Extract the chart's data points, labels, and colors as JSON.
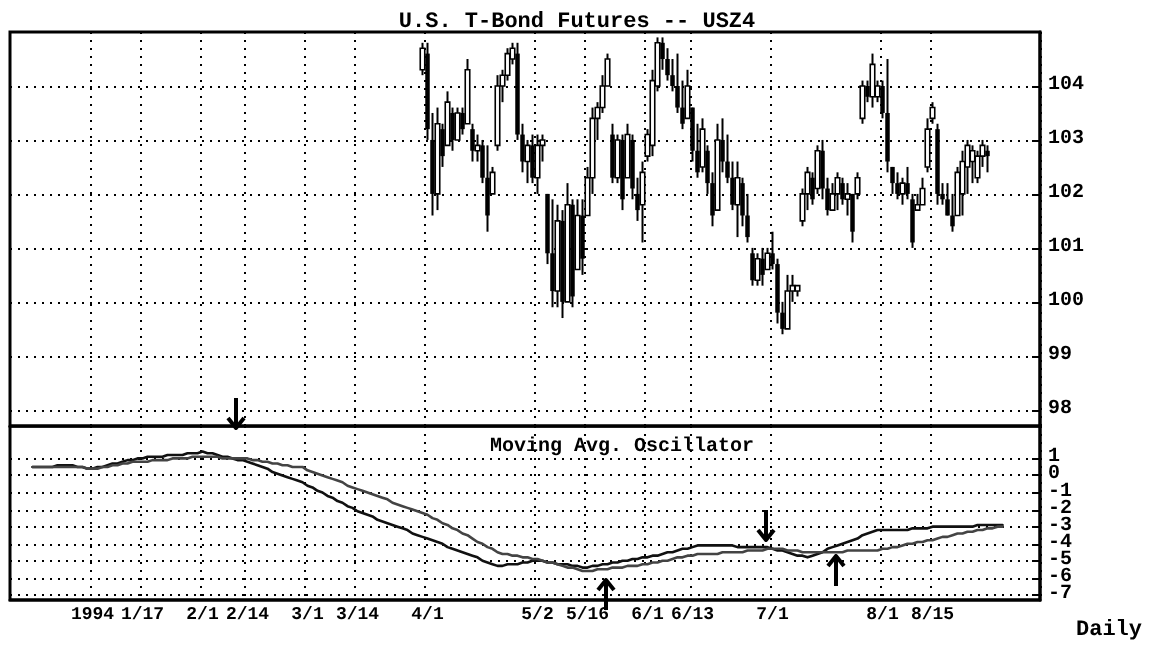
{
  "chart_data": [
    {
      "type": "candlestick",
      "title": "U.S. T-Bond Futures -- USZ4",
      "categories": [
        null,
        null,
        null,
        null,
        null,
        null,
        null,
        null,
        null,
        null,
        null,
        null,
        null,
        null,
        null,
        null,
        null,
        null,
        null,
        null,
        null,
        null,
        null,
        null,
        null,
        null,
        null,
        null,
        null,
        null,
        null,
        null,
        null,
        null,
        null,
        null,
        null,
        null,
        null,
        null,
        null,
        null,
        null,
        null,
        null,
        null,
        null,
        null,
        null,
        null,
        null,
        null,
        null,
        null,
        null,
        null,
        null,
        null,
        null,
        null,
        null,
        null,
        null,
        null,
        null,
        null,
        null,
        null,
        null,
        null,
        null,
        null,
        null,
        null,
        null,
        null,
        null,
        null,
        null,
        null,
        null,
        null,
        null,
        null,
        null,
        null,
        null,
        null,
        null,
        null,
        null,
        null,
        null,
        null,
        null,
        null,
        null,
        null,
        null,
        null,
        null,
        null,
        null,
        null,
        null,
        null,
        null,
        null,
        null,
        null,
        null,
        null,
        null,
        null,
        null,
        null,
        null,
        null,
        null,
        null,
        null,
        null,
        null,
        null,
        null,
        null,
        null,
        null,
        null,
        null,
        null,
        null,
        null,
        null,
        null,
        null,
        null,
        null,
        null,
        null,
        null,
        null,
        null,
        null,
        null,
        null,
        null,
        null,
        null,
        null,
        null,
        null,
        null,
        null,
        null,
        null,
        null,
        null,
        null,
        null,
        null,
        null,
        null,
        null,
        null,
        null,
        null,
        null,
        null,
        null,
        null,
        null,
        null,
        null,
        null,
        null,
        null,
        null,
        null,
        null,
        null,
        null,
        null,
        null,
        null,
        null,
        null,
        null,
        null,
        null,
        null,
        null,
        null,
        null,
        null,
        null,
        null,
        null,
        null,
        null,
        null,
        null,
        null,
        null,
        null,
        null
      ],
      "ohlc": [
        null,
        null,
        null,
        null,
        null,
        null,
        null,
        null,
        null,
        null,
        null,
        null,
        null,
        null,
        null,
        null,
        null,
        null,
        null,
        null,
        null,
        null,
        null,
        null,
        null,
        null,
        null,
        null,
        null,
        null,
        null,
        null,
        null,
        null,
        null,
        null,
        null,
        null,
        null,
        null,
        null,
        null,
        null,
        null,
        null,
        null,
        null,
        null,
        null,
        null,
        null,
        null,
        null,
        null,
        null,
        null,
        null,
        null,
        null,
        null,
        null,
        null,
        null,
        null,
        null,
        null,
        null,
        null,
        null,
        null,
        null,
        null,
        null,
        null,
        null,
        null,
        null,
        null,
        null,
        null,
        null,
        null,
        [
          104.3,
          104.8,
          104.2,
          104.7
        ],
        [
          104.6,
          104.8,
          103.0,
          103.2
        ],
        [
          103.0,
          103.5,
          101.6,
          102.0
        ],
        [
          102.0,
          103.6,
          101.7,
          103.3
        ],
        [
          103.2,
          103.3,
          102.5,
          102.7
        ],
        [
          102.9,
          103.9,
          102.9,
          103.7
        ],
        [
          103.5,
          103.6,
          102.8,
          103.0
        ],
        [
          103.0,
          103.6,
          103.0,
          103.5
        ],
        [
          103.5,
          103.6,
          103.1,
          103.2
        ],
        [
          103.3,
          104.5,
          103.3,
          104.3
        ],
        [
          103.2,
          103.3,
          102.6,
          102.8
        ],
        [
          102.8,
          103.1,
          102.6,
          102.9
        ],
        [
          102.9,
          103.0,
          102.2,
          102.3
        ],
        [
          102.3,
          102.9,
          101.3,
          101.6
        ],
        [
          102.0,
          102.5,
          102.0,
          102.4
        ],
        [
          102.9,
          104.2,
          102.8,
          104.0
        ],
        [
          104.0,
          104.3,
          103.7,
          104.2
        ],
        [
          104.2,
          104.7,
          104.1,
          104.6
        ],
        [
          104.5,
          104.8,
          104.4,
          104.7
        ],
        [
          104.6,
          104.8,
          103.0,
          103.1
        ],
        [
          103.1,
          103.3,
          102.4,
          102.6
        ],
        [
          102.6,
          103.0,
          102.2,
          102.9
        ],
        [
          102.9,
          103.1,
          102.2,
          102.3
        ],
        [
          102.3,
          103.1,
          102.0,
          102.9
        ],
        [
          102.9,
          103.1,
          102.6,
          103.0
        ],
        [
          102.0,
          102.0,
          100.7,
          100.9
        ],
        [
          100.9,
          101.9,
          99.9,
          100.2
        ],
        [
          100.2,
          101.8,
          99.9,
          101.5
        ],
        [
          101.5,
          101.7,
          99.7,
          100.0
        ],
        [
          100.0,
          102.2,
          100.0,
          101.8
        ],
        [
          101.8,
          101.9,
          99.9,
          100.1
        ],
        [
          100.6,
          101.9,
          100.6,
          101.6
        ],
        [
          101.6,
          101.9,
          100.5,
          100.8
        ],
        [
          101.6,
          102.5,
          101.6,
          102.3
        ],
        [
          102.3,
          103.6,
          102.0,
          103.4
        ],
        [
          103.4,
          103.7,
          103.0,
          103.6
        ],
        [
          103.6,
          104.2,
          103.5,
          104.0
        ],
        [
          104.0,
          104.6,
          104.0,
          104.5
        ],
        [
          103.1,
          103.3,
          102.2,
          102.3
        ],
        [
          102.3,
          103.1,
          102.2,
          103.0
        ],
        [
          103.0,
          103.1,
          101.7,
          101.9
        ],
        [
          102.3,
          103.3,
          102.3,
          103.1
        ],
        [
          103.0,
          103.1,
          101.9,
          102.1
        ],
        [
          102.0,
          102.3,
          101.5,
          101.7
        ],
        [
          101.8,
          102.6,
          101.1,
          102.4
        ],
        [
          102.7,
          103.2,
          102.6,
          103.1
        ],
        [
          102.9,
          104.3,
          102.7,
          104.1
        ],
        [
          104.0,
          104.9,
          103.9,
          104.8
        ],
        [
          104.8,
          104.9,
          104.3,
          104.5
        ],
        [
          104.5,
          104.7,
          104.1,
          104.2
        ],
        [
          104.2,
          104.5,
          103.9,
          104.0
        ],
        [
          104.0,
          104.6,
          103.5,
          103.6
        ],
        [
          103.6,
          104.1,
          103.2,
          103.3
        ],
        [
          103.4,
          104.3,
          103.4,
          104.0
        ],
        [
          103.6,
          103.6,
          102.6,
          102.8
        ],
        [
          102.8,
          103.3,
          102.3,
          102.4
        ],
        [
          102.5,
          103.4,
          102.4,
          103.2
        ],
        [
          102.8,
          102.9,
          102.0,
          102.2
        ],
        [
          102.2,
          102.4,
          101.4,
          101.6
        ],
        [
          101.7,
          103.3,
          101.7,
          103.0
        ],
        [
          103.0,
          103.4,
          102.4,
          102.6
        ],
        [
          102.6,
          103.1,
          102.2,
          102.3
        ],
        [
          102.3,
          102.6,
          101.7,
          101.8
        ],
        [
          101.8,
          102.6,
          101.2,
          102.3
        ],
        [
          102.2,
          102.3,
          101.4,
          101.6
        ],
        [
          101.6,
          102.0,
          101.1,
          101.2
        ],
        [
          100.9,
          101.0,
          100.3,
          100.4
        ],
        [
          100.4,
          100.9,
          100.3,
          100.8
        ],
        [
          100.8,
          101.0,
          100.3,
          100.5
        ],
        [
          100.6,
          101.0,
          100.6,
          100.9
        ],
        [
          100.9,
          101.3,
          100.6,
          100.7
        ],
        [
          100.7,
          100.8,
          99.6,
          99.8
        ],
        [
          99.8,
          100.0,
          99.4,
          99.5
        ],
        [
          99.5,
          100.5,
          99.5,
          100.2
        ],
        [
          100.2,
          100.5,
          100.0,
          100.3
        ],
        [
          100.2,
          100.3,
          100.1,
          100.3
        ],
        [
          101.5,
          102.1,
          101.4,
          102.0
        ],
        [
          102.0,
          102.5,
          101.7,
          102.4
        ],
        [
          102.3,
          102.4,
          101.8,
          101.9
        ],
        [
          102.1,
          102.9,
          102.0,
          102.8
        ],
        [
          102.8,
          103.0,
          101.9,
          102.1
        ],
        [
          102.1,
          102.3,
          101.6,
          101.7
        ],
        [
          101.7,
          102.2,
          101.7,
          102.0
        ],
        [
          102.0,
          102.4,
          101.7,
          102.3
        ],
        [
          102.2,
          102.3,
          101.8,
          101.9
        ],
        [
          101.9,
          102.2,
          101.6,
          102.0
        ],
        [
          102.0,
          102.0,
          101.1,
          101.3
        ],
        [
          102.0,
          102.4,
          101.9,
          102.3
        ],
        [
          103.4,
          104.1,
          103.3,
          104.0
        ],
        [
          104.0,
          104.1,
          103.7,
          103.8
        ],
        [
          103.8,
          104.6,
          103.6,
          104.4
        ],
        [
          103.8,
          104.1,
          103.7,
          104.0
        ],
        [
          104.0,
          104.1,
          103.4,
          103.5
        ],
        [
          103.5,
          104.5,
          102.4,
          102.6
        ],
        [
          102.5,
          102.5,
          102.0,
          102.2
        ],
        [
          102.2,
          102.4,
          101.9,
          102.0
        ],
        [
          102.0,
          102.3,
          101.8,
          102.2
        ],
        [
          102.2,
          102.5,
          101.9,
          102.0
        ],
        [
          101.9,
          102.0,
          101.0,
          101.1
        ],
        [
          101.7,
          102.0,
          101.7,
          101.8
        ],
        [
          101.8,
          102.3,
          101.8,
          102.1
        ],
        [
          102.5,
          103.4,
          102.4,
          103.2
        ],
        [
          103.4,
          103.7,
          103.3,
          103.6
        ],
        [
          103.2,
          103.3,
          101.8,
          102.0
        ],
        [
          102.0,
          102.2,
          101.8,
          101.9
        ],
        [
          101.9,
          102.2,
          101.6,
          101.6
        ],
        [
          101.6,
          102.0,
          101.3,
          101.4
        ],
        [
          101.6,
          102.5,
          101.6,
          102.4
        ],
        [
          102.0,
          102.8,
          101.6,
          102.6
        ],
        [
          102.5,
          103.0,
          102.0,
          102.9
        ],
        [
          102.6,
          102.9,
          102.2,
          102.8
        ],
        [
          102.3,
          102.8,
          102.2,
          102.7
        ],
        [
          102.7,
          103.0,
          102.5,
          102.9
        ],
        [
          102.8,
          102.9,
          102.4,
          102.7
        ],
        null,
        null,
        null,
        null,
        null,
        null,
        null,
        null,
        null,
        null
      ],
      "color": "#000000",
      "ylim": [
        97.7,
        105
      ],
      "yticks": [
        98,
        99,
        100,
        101,
        102,
        103,
        104
      ],
      "grid": true,
      "tick_labels": "y"
    },
    {
      "type": "line",
      "title": "Moving Avg. Oscillator",
      "categories": [
        null,
        null,
        null,
        null,
        null,
        null,
        null,
        null,
        null,
        null,
        null,
        null,
        null,
        null,
        null,
        null,
        "1994",
        null,
        null,
        null,
        null,
        null,
        null,
        null,
        null,
        null,
        "1/17",
        null,
        null,
        null,
        null,
        null,
        null,
        null,
        null,
        null,
        null,
        null,
        "2/1",
        null,
        null,
        null,
        null,
        null,
        null,
        null,
        null,
        "2/14",
        null,
        null,
        null,
        null,
        null,
        null,
        null,
        null,
        null,
        null,
        null,
        "3/1",
        null,
        null,
        null,
        null,
        null,
        null,
        null,
        null,
        null,
        "3/14",
        null,
        null,
        null,
        null,
        null,
        null,
        null,
        null,
        null,
        null,
        null,
        null,
        null,
        "4/1",
        null,
        null,
        null,
        null,
        null,
        null,
        null,
        null,
        null,
        null,
        null,
        null,
        null,
        null,
        null,
        null,
        null,
        null,
        null,
        null,
        null,
        "5/2",
        null,
        null,
        null,
        null,
        null,
        null,
        null,
        null,
        null,
        "5/16",
        null,
        null,
        null,
        null,
        null,
        null,
        null,
        null,
        null,
        null,
        null,
        "6/1",
        null,
        null,
        null,
        null,
        null,
        null,
        null,
        null,
        "6/13",
        null,
        null,
        null,
        null,
        null,
        null,
        null,
        null,
        null,
        null,
        null,
        null,
        null,
        null,
        null,
        "7/1",
        null,
        null,
        null,
        null,
        null,
        null,
        null,
        null,
        null,
        null,
        null,
        null,
        null,
        null,
        null,
        null,
        null,
        null,
        null,
        null,
        null,
        "8/1",
        null,
        null,
        null,
        null,
        null,
        null,
        null,
        null,
        null,
        "8/15",
        null,
        null,
        null,
        null,
        null,
        null,
        null,
        null,
        null,
        null,
        null,
        null,
        null,
        null,
        null,
        null,
        null,
        null,
        null,
        null,
        null
      ],
      "series": [
        {
          "color": "#111111",
          "values": [
            null,
            null,
            null,
            null,
            0.5,
            0.5,
            0.5,
            0.5,
            0.5,
            0.6,
            0.6,
            0.6,
            0.6,
            0.5,
            0.5,
            0.4,
            0.4,
            0.5,
            0.5,
            0.6,
            0.7,
            0.7,
            0.8,
            0.9,
            0.9,
            1.0,
            1.0,
            1.1,
            1.1,
            1.1,
            1.1,
            1.2,
            1.2,
            1.2,
            1.2,
            1.3,
            1.3,
            1.3,
            1.4,
            1.3,
            1.3,
            1.2,
            1.1,
            1.1,
            1.0,
            0.9,
            0.9,
            0.8,
            0.7,
            0.6,
            0.5,
            0.4,
            0.2,
            0.1,
            0.0,
            -0.1,
            -0.2,
            -0.3,
            -0.4,
            -0.6,
            -0.7,
            -0.9,
            -1.0,
            -1.2,
            -1.3,
            -1.5,
            -1.6,
            -1.8,
            -1.9,
            -2.1,
            -2.2,
            -2.3,
            -2.4,
            -2.6,
            -2.7,
            -2.8,
            -2.9,
            -3.0,
            -3.1,
            -3.2,
            -3.4,
            -3.5,
            -3.6,
            -3.7,
            -3.8,
            -3.9,
            -4.0,
            -4.2,
            -4.3,
            -4.4,
            -4.5,
            -4.6,
            -4.7,
            -4.8,
            -5.0,
            -5.1,
            -5.2,
            -5.3,
            -5.3,
            -5.2,
            -5.2,
            -5.2,
            -5.1,
            -5.1,
            -5.0,
            -5.0,
            -5.0,
            -5.1,
            -5.1,
            -5.2,
            -5.2,
            -5.2,
            -5.3,
            -5.3,
            -5.4,
            -5.4,
            -5.3,
            -5.3,
            -5.2,
            -5.2,
            -5.1,
            -5.1,
            -5.0,
            -5.0,
            -4.9,
            -4.9,
            -4.8,
            -4.8,
            -4.7,
            -4.7,
            -4.6,
            -4.5,
            -4.5,
            -4.4,
            -4.3,
            -4.3,
            -4.2,
            -4.1,
            -4.1,
            -4.1,
            -4.1,
            -4.1,
            -4.1,
            -4.1,
            -4.1,
            -4.2,
            -4.2,
            -4.2,
            -4.2,
            -4.2,
            -4.2,
            -4.2,
            -4.3,
            -4.4,
            -4.4,
            -4.5,
            -4.6,
            -4.7,
            -4.7,
            -4.8,
            -4.7,
            -4.6,
            -4.5,
            -4.3,
            -4.2,
            -4.1,
            -4.0,
            -3.9,
            -3.8,
            -3.7,
            -3.5,
            -3.4,
            -3.3,
            -3.2,
            -3.2,
            -3.2,
            -3.2,
            -3.2,
            -3.2,
            -3.2,
            -3.1,
            -3.1,
            -3.1,
            -3.1,
            -3.0,
            -3.0,
            -3.0,
            -3.0,
            -3.0,
            -3.0,
            -3.0,
            -3.0,
            -3.0,
            -2.9,
            -2.9,
            -2.9,
            -2.9,
            -2.9,
            -2.9,
            null,
            null,
            null,
            null,
            null,
            null,
            null
          ]
        },
        {
          "color": "#444444",
          "values": [
            null,
            null,
            null,
            null,
            0.5,
            0.5,
            0.5,
            0.5,
            0.5,
            0.5,
            0.5,
            0.5,
            0.5,
            0.5,
            0.5,
            0.4,
            0.4,
            0.4,
            0.5,
            0.5,
            0.6,
            0.6,
            0.7,
            0.7,
            0.8,
            0.8,
            0.8,
            0.8,
            0.9,
            0.9,
            0.9,
            0.9,
            1.0,
            1.0,
            1.0,
            1.0,
            1.1,
            1.1,
            1.1,
            1.1,
            1.1,
            1.1,
            1.0,
            1.0,
            1.0,
            1.0,
            1.0,
            1.0,
            0.9,
            0.9,
            0.8,
            0.8,
            0.7,
            0.7,
            0.6,
            0.6,
            0.5,
            0.5,
            0.5,
            0.3,
            0.2,
            0.1,
            0.0,
            -0.1,
            -0.2,
            -0.3,
            -0.4,
            -0.6,
            -0.7,
            -0.8,
            -0.9,
            -1.0,
            -1.1,
            -1.2,
            -1.3,
            -1.4,
            -1.6,
            -1.7,
            -1.8,
            -1.9,
            -2.0,
            -2.1,
            -2.2,
            -2.3,
            -2.5,
            -2.6,
            -2.8,
            -2.9,
            -3.1,
            -3.2,
            -3.4,
            -3.5,
            -3.7,
            -3.9,
            -4.0,
            -4.2,
            -4.3,
            -4.5,
            -4.6,
            -4.6,
            -4.7,
            -4.7,
            -4.8,
            -4.8,
            -4.9,
            -4.9,
            -5.0,
            -5.1,
            -5.1,
            -5.2,
            -5.3,
            -5.4,
            -5.4,
            -5.5,
            -5.6,
            -5.6,
            -5.6,
            -5.5,
            -5.5,
            -5.5,
            -5.4,
            -5.4,
            -5.4,
            -5.3,
            -5.3,
            -5.3,
            -5.2,
            -5.2,
            -5.1,
            -5.1,
            -5.0,
            -5.0,
            -4.9,
            -4.8,
            -4.8,
            -4.7,
            -4.7,
            -4.6,
            -4.6,
            -4.6,
            -4.6,
            -4.6,
            -4.5,
            -4.5,
            -4.5,
            -4.5,
            -4.5,
            -4.4,
            -4.4,
            -4.4,
            -4.4,
            -4.3,
            -4.3,
            -4.3,
            -4.3,
            -4.4,
            -4.4,
            -4.4,
            -4.5,
            -4.5,
            -4.5,
            -4.5,
            -4.5,
            -4.5,
            -4.5,
            -4.5,
            -4.5,
            -4.4,
            -4.4,
            -4.4,
            -4.4,
            -4.4,
            -4.4,
            -4.4,
            -4.3,
            -4.3,
            -4.2,
            -4.2,
            -4.1,
            -4.0,
            -4.0,
            -3.9,
            -3.9,
            -3.8,
            -3.8,
            -3.7,
            -3.6,
            -3.6,
            -3.5,
            -3.4,
            -3.4,
            -3.3,
            -3.3,
            -3.2,
            -3.2,
            -3.1,
            -3.1,
            -3.0,
            -3.0,
            null,
            null,
            null,
            null,
            null,
            null,
            null
          ]
        }
      ],
      "marker": "none",
      "line_style": "solid",
      "ylim": [
        -7.3,
        2.9
      ],
      "yticks": [
        -7,
        -6,
        -5,
        -4,
        -3,
        -2,
        -1,
        0,
        1
      ],
      "grid": true,
      "annotations": [
        "Daily"
      ]
    }
  ]
}
